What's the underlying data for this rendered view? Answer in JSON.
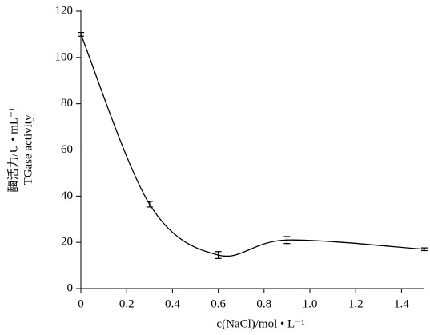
{
  "chart_data": {
    "type": "line",
    "x_label": "c(NaCl)/mol • L⁻¹",
    "y_label": [
      "酶活力/U • mL⁻¹",
      "TGase activity"
    ],
    "series": [
      {
        "color": "#000000",
        "x": [
          0,
          0.3,
          0.6,
          0.9,
          1.5
        ],
        "values": [
          110,
          36.5,
          14.5,
          21,
          17
        ],
        "errors": [
          0.8,
          1.2,
          1.5,
          1.5,
          0.6
        ]
      }
    ],
    "xlim": [
      0,
      1.5
    ],
    "xticks": [
      0,
      0.2,
      0.4,
      0.6,
      0.8,
      {
        "value": 1,
        "label": "1.0"
      },
      1.2,
      1.4
    ],
    "ylim": [
      0,
      120
    ],
    "yticks": [
      0,
      20,
      40,
      60,
      80,
      100,
      120
    ],
    "grid": false
  }
}
